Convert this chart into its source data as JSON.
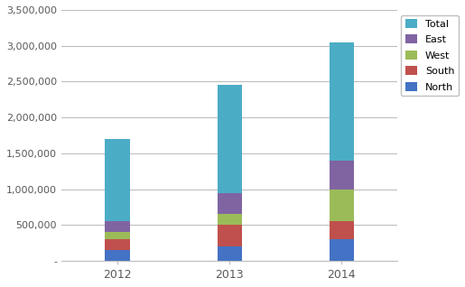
{
  "years": [
    "2012",
    "2013",
    "2014"
  ],
  "series": {
    "North": [
      150000,
      200000,
      300000
    ],
    "South": [
      150000,
      300000,
      250000
    ],
    "West": [
      100000,
      150000,
      450000
    ],
    "East": [
      150000,
      300000,
      400000
    ],
    "Total": [
      1150000,
      1500000,
      1650000
    ]
  },
  "colors": {
    "North": "#4472C4",
    "South": "#C0504D",
    "West": "#9BBB59",
    "East": "#8064A2",
    "Total": "#4BACC6"
  },
  "series_order": [
    "North",
    "South",
    "West",
    "East",
    "Total"
  ],
  "legend_order": [
    "Total",
    "East",
    "West",
    "South",
    "North"
  ],
  "ylim": [
    0,
    3500000
  ],
  "yticks": [
    0,
    500000,
    1000000,
    1500000,
    2000000,
    2500000,
    3000000,
    3500000
  ],
  "ytick_labels": [
    "-",
    "500,000",
    "1,000,000",
    "1,500,000",
    "2,000,000",
    "2,500,000",
    "3,000,000",
    "3,500,000"
  ],
  "background_color": "#FFFFFF",
  "plot_area_color": "#FFFFFF",
  "grid_color": "#BFBFBF",
  "bar_width": 0.22,
  "figsize": [
    5.15,
    3.18
  ],
  "dpi": 100
}
